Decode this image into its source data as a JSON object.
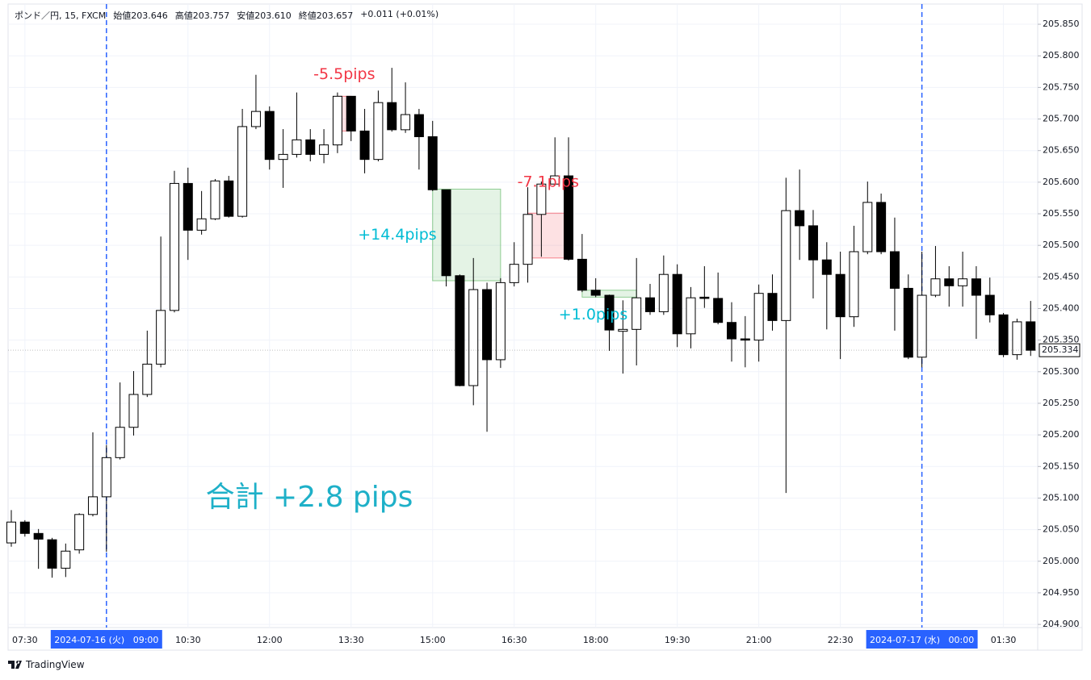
{
  "chart_data": {
    "type": "candlestick",
    "title": "ポンド／円, 15, FXCM",
    "header": [
      "始値203.646",
      "高値203.757",
      "安値203.610",
      "終値203.657",
      "+0.011 (+0.01%)"
    ],
    "brand": "TradingView",
    "up_color": "#ffffff",
    "down_color": "#000000",
    "border_color": "#000000",
    "grid": true,
    "highlight": [
      7,
      67
    ],
    "categories": [
      null,
      "07:30",
      null,
      null,
      null,
      null,
      null,
      "2024-07-16 (火)   09:00",
      null,
      null,
      null,
      null,
      null,
      "10:30",
      null,
      null,
      null,
      null,
      null,
      "12:00",
      null,
      null,
      null,
      null,
      null,
      "13:30",
      null,
      null,
      null,
      null,
      null,
      "15:00",
      null,
      null,
      null,
      null,
      null,
      "16:30",
      null,
      null,
      null,
      null,
      null,
      "18:00",
      null,
      null,
      null,
      null,
      null,
      "19:30",
      null,
      null,
      null,
      null,
      null,
      "21:00",
      null,
      null,
      null,
      null,
      null,
      "22:30",
      null,
      null,
      null,
      null,
      null,
      "2024-07-17 (水)   00:00",
      null,
      null,
      null,
      null,
      null,
      "01:30",
      null,
      null
    ],
    "open": [
      205.029,
      205.062,
      205.044,
      205.034,
      204.989,
      205.018,
      205.074,
      205.102,
      205.164,
      205.212,
      205.264,
      205.312,
      205.397,
      205.598,
      205.524,
      205.542,
      205.602,
      205.546,
      205.688,
      205.712,
      205.636,
      205.644,
      205.667,
      205.644,
      205.659,
      205.736,
      205.681,
      205.636,
      205.726,
      205.683,
      205.707,
      205.672,
      205.588,
      205.452,
      205.278,
      205.43,
      205.319,
      205.441,
      205.47,
      205.549,
      205.597,
      205.61,
      205.478,
      205.429,
      205.421,
      205.364,
      205.367,
      205.417,
      205.395,
      205.454,
      205.36,
      205.418,
      205.416,
      205.378,
      205.352,
      205.35,
      205.424,
      205.381,
      205.555,
      205.531,
      205.477,
      205.454,
      205.387,
      205.49,
      205.568,
      205.49,
      205.432,
      205.323,
      205.421,
      205.447,
      205.436,
      205.447,
      205.421,
      205.39,
      205.327,
      205.379
    ],
    "high": [
      205.081,
      205.065,
      205.051,
      205.037,
      205.028,
      205.076,
      205.204,
      205.184,
      205.283,
      205.301,
      205.365,
      205.514,
      205.618,
      205.623,
      205.586,
      205.605,
      205.61,
      205.716,
      205.77,
      205.72,
      205.684,
      205.742,
      205.684,
      205.684,
      205.742,
      205.736,
      205.716,
      205.745,
      205.781,
      205.758,
      205.716,
      205.697,
      205.588,
      205.454,
      205.48,
      205.441,
      205.448,
      205.505,
      205.592,
      205.601,
      205.671,
      205.671,
      205.518,
      205.448,
      205.422,
      205.413,
      205.48,
      205.439,
      205.484,
      205.47,
      205.434,
      205.467,
      205.457,
      205.41,
      205.388,
      205.438,
      205.454,
      205.607,
      205.62,
      205.556,
      205.505,
      205.49,
      205.531,
      205.601,
      205.582,
      205.544,
      205.454,
      205.49,
      205.499,
      205.467,
      205.49,
      205.467,
      205.449,
      205.393,
      205.384,
      205.412
    ],
    "low": [
      205.023,
      205.039,
      204.988,
      204.974,
      204.975,
      205.012,
      205.071,
      205.015,
      205.161,
      205.199,
      205.26,
      205.307,
      205.394,
      205.477,
      205.517,
      205.54,
      205.544,
      205.544,
      205.684,
      205.62,
      205.591,
      205.639,
      205.633,
      205.63,
      205.646,
      205.665,
      205.614,
      205.633,
      205.68,
      205.678,
      205.62,
      205.586,
      205.435,
      205.277,
      205.247,
      205.205,
      205.306,
      205.435,
      205.441,
      205.482,
      205.595,
      205.476,
      205.426,
      205.418,
      205.333,
      205.297,
      205.31,
      205.39,
      205.39,
      205.339,
      205.337,
      205.401,
      205.375,
      205.316,
      205.307,
      205.316,
      205.365,
      205.108,
      205.477,
      205.416,
      205.367,
      205.32,
      205.371,
      205.486,
      205.486,
      205.365,
      205.32,
      205.307,
      205.418,
      205.403,
      205.403,
      205.352,
      205.378,
      205.323,
      205.319,
      205.325
    ],
    "close": [
      205.062,
      205.044,
      205.035,
      204.989,
      205.016,
      205.074,
      205.102,
      205.164,
      205.212,
      205.264,
      205.312,
      205.397,
      205.598,
      205.524,
      205.542,
      205.602,
      205.546,
      205.688,
      205.712,
      205.636,
      205.644,
      205.667,
      205.644,
      205.659,
      205.736,
      205.681,
      205.636,
      205.726,
      205.683,
      205.707,
      205.672,
      205.588,
      205.452,
      205.278,
      205.43,
      205.319,
      205.441,
      205.47,
      205.549,
      205.597,
      205.61,
      205.478,
      205.429,
      205.421,
      205.366,
      205.367,
      205.417,
      205.395,
      205.454,
      205.36,
      205.417,
      205.416,
      205.378,
      205.352,
      205.35,
      205.424,
      205.381,
      205.555,
      205.531,
      205.477,
      205.454,
      205.387,
      205.49,
      205.568,
      205.49,
      205.432,
      205.323,
      205.421,
      205.447,
      205.436,
      205.447,
      205.421,
      205.39,
      205.327,
      205.379,
      205.334
    ],
    "ylim": [
      204.895,
      205.882
    ],
    "yticks": [
      {
        "value": 204.9,
        "label": "204.900"
      },
      {
        "value": 204.95,
        "label": "204.950"
      },
      {
        "value": 205.0,
        "label": "205.000"
      },
      {
        "value": 205.05,
        "label": "205.050"
      },
      {
        "value": 205.1,
        "label": "205.100"
      },
      {
        "value": 205.15,
        "label": "205.150"
      },
      {
        "value": 205.2,
        "label": "205.200"
      },
      {
        "value": 205.25,
        "label": "205.250"
      },
      {
        "value": 205.3,
        "label": "205.300"
      },
      {
        "value": 205.35,
        "label": "205.350"
      },
      {
        "value": 205.4,
        "label": "205.400"
      },
      {
        "value": 205.45,
        "label": "205.450"
      },
      {
        "value": 205.5,
        "label": "205.500"
      },
      {
        "value": 205.55,
        "label": "205.550"
      },
      {
        "value": 205.6,
        "label": "205.600"
      },
      {
        "value": 205.65,
        "label": "205.650"
      },
      {
        "value": 205.7,
        "label": "205.700"
      },
      {
        "value": 205.75,
        "label": "205.750"
      },
      {
        "value": 205.8,
        "label": "205.800"
      },
      {
        "value": 205.85,
        "label": "205.850"
      }
    ],
    "annotations": [
      {
        "label": "-5.5pips",
        "from": 24,
        "to": 25,
        "top": 205.736,
        "bottom": 205.681,
        "color": "#f23645"
      },
      {
        "label": "+14.4pips",
        "from": 31,
        "to": 36,
        "top": 205.589,
        "bottom": 205.444,
        "color": "#4caf50",
        "text_color": "#00bcd4"
      },
      {
        "label": "-7.1pips",
        "from": 38,
        "to": 41,
        "top": 205.551,
        "bottom": 205.48,
        "color": "#f23645"
      },
      {
        "label": "+1.0pips",
        "from": 42,
        "to": 46,
        "top": 205.429,
        "bottom": 205.418,
        "color": "#4caf50",
        "text_color": "#00bcd4"
      }
    ],
    "total_label": "合計 +2.8 pips",
    "total_color": "#1eb0c8"
  }
}
